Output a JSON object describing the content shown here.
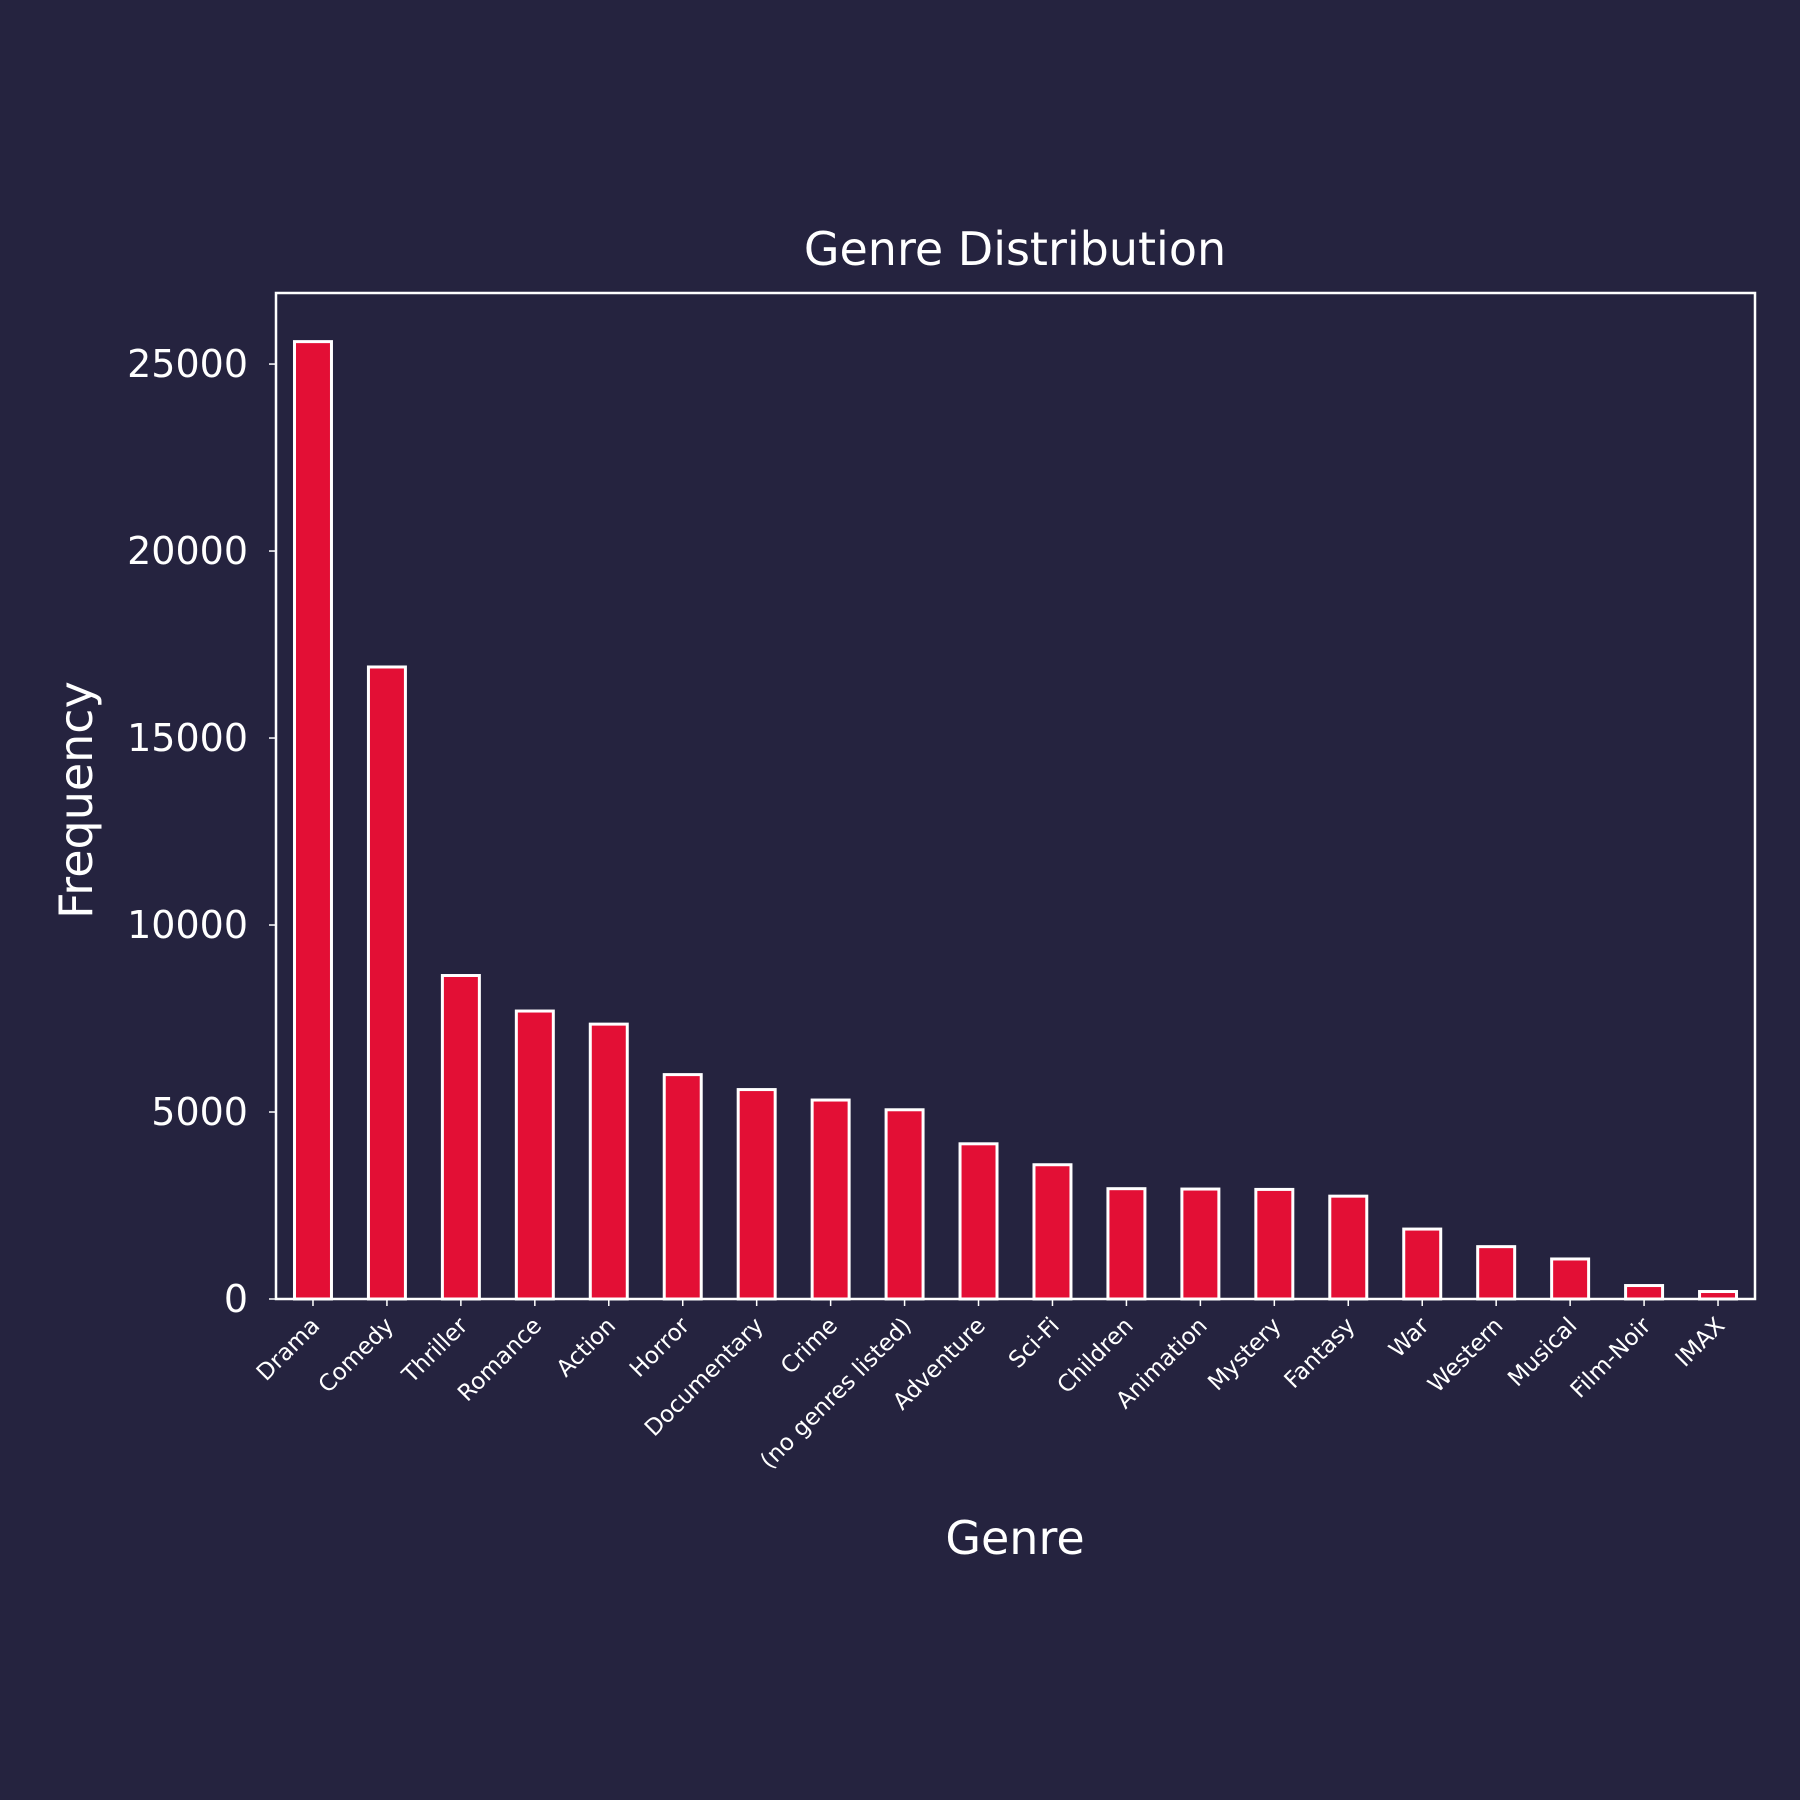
{
  "chart_data": {
    "type": "bar",
    "title": "Genre Distribution",
    "xlabel": "Genre",
    "ylabel": "Frequency",
    "categories": [
      "Drama",
      "Comedy",
      "Thriller",
      "Romance",
      "Action",
      "Horror",
      "Documentary",
      "Crime",
      "(no genres listed)",
      "Adventure",
      "Sci-Fi",
      "Children",
      "Animation",
      "Mystery",
      "Fantasy",
      "War",
      "Western",
      "Musical",
      "Film-Noir",
      "IMAX"
    ],
    "values": [
      25600,
      16900,
      8650,
      7700,
      7350,
      6000,
      5600,
      5320,
      5060,
      4150,
      3590,
      2950,
      2940,
      2930,
      2750,
      1870,
      1400,
      1070,
      360,
      200
    ],
    "ylim": [
      0,
      26900
    ],
    "yticks": [
      0,
      5000,
      10000,
      15000,
      20000,
      25000
    ],
    "grid": false,
    "colors": {
      "background": "#25233f",
      "bar_fill": "#e30f35",
      "bar_edge": "#ffffff",
      "text": "#ffffff",
      "axes": "#ffffff"
    }
  }
}
